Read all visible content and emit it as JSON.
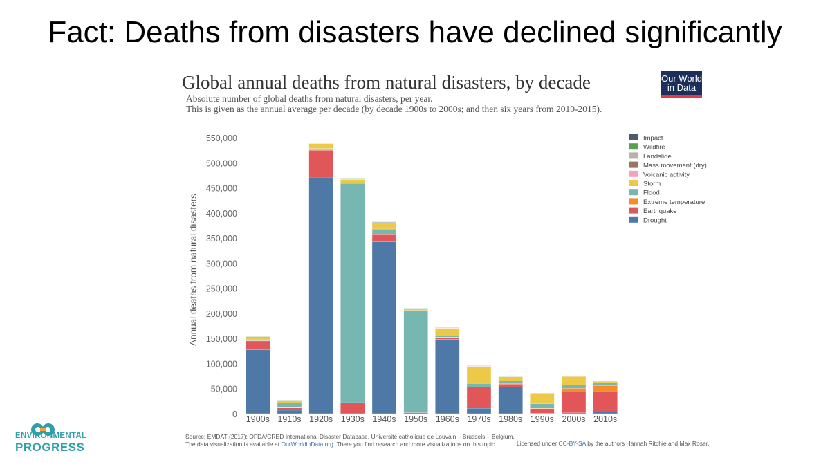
{
  "slide": {
    "title": "Fact: Deaths from disasters have declined significantly"
  },
  "header": {
    "logo_line1": "Our World",
    "logo_line2": "in Data"
  },
  "footer": {
    "source_line1": "Source: EMDAT (2017): OFDA/CRED International Disaster Database, Université catholique de Louvain – Brussels – Belgium.",
    "source_line2_pre": "The data visualization is available at ",
    "source_line2_link": "OurWorldinData.org",
    "source_line2_post": ". There you find research and more visualizations on this topic.",
    "license_pre": "Licensed under ",
    "license_link": "CC-BY-SA",
    "license_post": " by the authors Hannah Ritchie and Max Roser."
  },
  "branding": {
    "line1": "ENVIRONMENTAL",
    "line2": "PROGRESS",
    "color": "#2e9fa8"
  },
  "chart_data": {
    "type": "bar",
    "stacked": true,
    "title": "Global annual deaths from natural disasters, by decade",
    "subtitle_line1": "Absolute number of global deaths from natural disasters, per year.",
    "subtitle_line2": "This is given as the annual average per decade (by decade 1900s to 2000s; and then six years from 2010-2015).",
    "xlabel": "",
    "ylabel": "Annual deaths from natural disasters",
    "ylim": [
      0,
      550000
    ],
    "yticks": [
      {
        "value": 0,
        "label": "0"
      },
      {
        "value": 50000,
        "label": "50,000"
      },
      {
        "value": 100000,
        "label": "100,000"
      },
      {
        "value": 150000,
        "label": "150,000"
      },
      {
        "value": 200000,
        "label": "200,000"
      },
      {
        "value": 250000,
        "label": "250,000"
      },
      {
        "value": 300000,
        "label": "300,000"
      },
      {
        "value": 350000,
        "label": "350,000"
      },
      {
        "value": 400000,
        "label": "400,000"
      },
      {
        "value": 450000,
        "label": "450,000"
      },
      {
        "value": 500000,
        "label": "500,000"
      },
      {
        "value": 550000,
        "label": "550,000"
      }
    ],
    "categories": [
      "1900s",
      "1910s",
      "1920s",
      "1930s",
      "1940s",
      "1950s",
      "1960s",
      "1970s",
      "1980s",
      "1990s",
      "2000s",
      "2010s"
    ],
    "legend_position": "top-right",
    "series": [
      {
        "name": "Drought",
        "color": "#4e79a7",
        "values": [
          128000,
          7000,
          470000,
          0,
          343000,
          0,
          148000,
          11000,
          53000,
          1000,
          1500,
          3000
        ]
      },
      {
        "name": "Earthquake",
        "color": "#e15759",
        "values": [
          17000,
          6000,
          55000,
          22000,
          15000,
          2000,
          4000,
          42000,
          6000,
          9000,
          42000,
          41000
        ]
      },
      {
        "name": "Extreme temperature",
        "color": "#f28e2b",
        "values": [
          500,
          500,
          500,
          0,
          0,
          0,
          500,
          500,
          500,
          1000,
          7000,
          12000
        ]
      },
      {
        "name": "Flood",
        "color": "#76b7b2",
        "values": [
          3000,
          8000,
          3000,
          437000,
          10000,
          204000,
          3000,
          7000,
          6000,
          9000,
          7000,
          6000
        ]
      },
      {
        "name": "Storm",
        "color": "#edc948",
        "values": [
          2000,
          5000,
          10000,
          8000,
          12000,
          3000,
          15000,
          34000,
          5000,
          20000,
          17000,
          3000
        ]
      },
      {
        "name": "Volcanic activity",
        "color": "#f4a3c0",
        "values": [
          3000,
          200,
          200,
          200,
          200,
          500,
          200,
          200,
          1000,
          100,
          50,
          50
        ]
      },
      {
        "name": "Mass movement (dry)",
        "color": "#9c755f",
        "values": [
          0,
          0,
          0,
          0,
          0,
          0,
          0,
          0,
          0,
          0,
          0,
          0
        ]
      },
      {
        "name": "Landslide",
        "color": "#bab0ac",
        "values": [
          500,
          500,
          1000,
          1000,
          2000,
          500,
          1000,
          1000,
          2000,
          1000,
          1000,
          1000
        ]
      },
      {
        "name": "Wildfire",
        "color": "#59a14f",
        "values": [
          100,
          100,
          100,
          100,
          100,
          100,
          100,
          100,
          100,
          100,
          100,
          100
        ]
      },
      {
        "name": "Impact",
        "color": "#4c5b6b",
        "values": [
          0,
          0,
          0,
          0,
          0,
          0,
          0,
          0,
          0,
          0,
          0,
          0
        ]
      }
    ],
    "legend_order": [
      "Impact",
      "Wildfire",
      "Landslide",
      "Mass movement (dry)",
      "Volcanic activity",
      "Storm",
      "Flood",
      "Extreme temperature",
      "Earthquake",
      "Drought"
    ]
  }
}
